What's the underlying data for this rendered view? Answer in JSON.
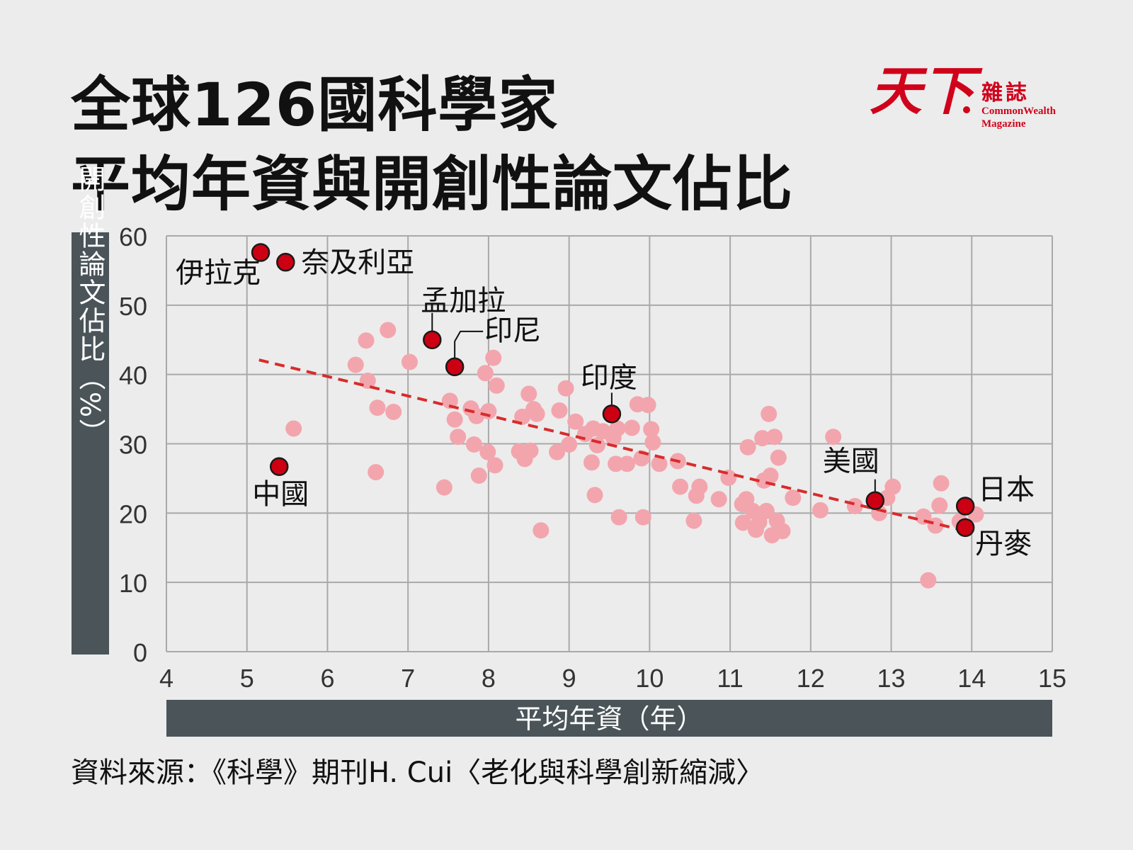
{
  "header": {
    "title_line1": "全球126國科學家",
    "title_line2": "平均年資與開創性論文佔比"
  },
  "logo": {
    "main": "天下",
    "sub": "雜誌",
    "en_line1": "CommonWealth",
    "en_line2": "Magazine",
    "icon": "commonwealth-logo"
  },
  "source_note": "資料來源：《科學》期刊H. Cui〈老化與科學創新縮減〉",
  "colors": {
    "background": "#ececec",
    "grid": "#a9a9a9",
    "axis_bar": "#4a5459",
    "highlight": "#cc0012",
    "other_points": "#f3a5ad",
    "trend": "#d92b2b"
  },
  "chart_data": {
    "type": "scatter",
    "xlabel": "平均年資（年）",
    "ylabel": "開創性論文佔比（%）",
    "xlim": [
      4,
      15
    ],
    "ylim": [
      0,
      60
    ],
    "xticks": [
      4,
      5,
      6,
      7,
      8,
      9,
      10,
      11,
      12,
      13,
      14,
      15
    ],
    "yticks": [
      0,
      10,
      20,
      30,
      40,
      50,
      60
    ],
    "grid": true,
    "trendline": {
      "x": [
        5.15,
        13.9
      ],
      "y": [
        42.1,
        17.5
      ]
    },
    "highlighted": [
      {
        "label": "伊拉克",
        "x": 5.17,
        "y": 57.6
      },
      {
        "label": "奈及利亞",
        "x": 5.48,
        "y": 56.2
      },
      {
        "label": "中國",
        "x": 5.4,
        "y": 26.7
      },
      {
        "label": "孟加拉",
        "x": 7.3,
        "y": 45.0
      },
      {
        "label": "印尼",
        "x": 7.58,
        "y": 41.1
      },
      {
        "label": "印度",
        "x": 9.53,
        "y": 34.3
      },
      {
        "label": "美國",
        "x": 12.8,
        "y": 21.8
      },
      {
        "label": "日本",
        "x": 13.92,
        "y": 21.0
      },
      {
        "label": "丹麥",
        "x": 13.92,
        "y": 17.9
      }
    ],
    "others": [
      [
        5.58,
        32.2
      ],
      [
        6.35,
        41.4
      ],
      [
        6.48,
        44.9
      ],
      [
        6.5,
        39.1
      ],
      [
        6.62,
        35.2
      ],
      [
        6.6,
        25.9
      ],
      [
        6.75,
        46.4
      ],
      [
        6.82,
        34.6
      ],
      [
        7.02,
        41.8
      ],
      [
        7.45,
        23.7
      ],
      [
        7.52,
        36.2
      ],
      [
        7.58,
        33.5
      ],
      [
        7.62,
        31.0
      ],
      [
        7.78,
        35.1
      ],
      [
        7.82,
        29.9
      ],
      [
        7.85,
        34.0
      ],
      [
        7.88,
        25.4
      ],
      [
        7.96,
        40.2
      ],
      [
        7.99,
        28.8
      ],
      [
        8.0,
        34.7
      ],
      [
        8.06,
        42.4
      ],
      [
        8.08,
        26.9
      ],
      [
        8.1,
        38.4
      ],
      [
        8.38,
        28.9
      ],
      [
        8.42,
        33.9
      ],
      [
        8.45,
        27.8
      ],
      [
        8.5,
        37.2
      ],
      [
        8.52,
        29.0
      ],
      [
        8.56,
        35.0
      ],
      [
        8.6,
        34.3
      ],
      [
        8.65,
        17.5
      ],
      [
        8.85,
        28.8
      ],
      [
        8.88,
        34.8
      ],
      [
        8.96,
        38.0
      ],
      [
        9.0,
        29.9
      ],
      [
        9.08,
        33.2
      ],
      [
        9.2,
        31.4
      ],
      [
        9.28,
        27.3
      ],
      [
        9.3,
        32.2
      ],
      [
        9.32,
        22.6
      ],
      [
        9.35,
        29.8
      ],
      [
        9.42,
        31.8
      ],
      [
        9.55,
        30.9
      ],
      [
        9.58,
        27.1
      ],
      [
        9.6,
        32.2
      ],
      [
        9.62,
        19.4
      ],
      [
        9.72,
        27.1
      ],
      [
        9.78,
        32.3
      ],
      [
        9.85,
        35.7
      ],
      [
        9.9,
        27.9
      ],
      [
        9.92,
        19.4
      ],
      [
        9.98,
        35.6
      ],
      [
        10.02,
        32.1
      ],
      [
        10.04,
        30.2
      ],
      [
        10.12,
        27.1
      ],
      [
        10.35,
        27.5
      ],
      [
        10.38,
        23.8
      ],
      [
        10.55,
        18.9
      ],
      [
        10.58,
        22.5
      ],
      [
        10.62,
        23.8
      ],
      [
        10.86,
        22.0
      ],
      [
        10.98,
        25.1
      ],
      [
        11.15,
        21.3
      ],
      [
        11.16,
        18.6
      ],
      [
        11.2,
        22.0
      ],
      [
        11.22,
        29.5
      ],
      [
        11.28,
        20.3
      ],
      [
        11.32,
        17.6
      ],
      [
        11.36,
        18.7
      ],
      [
        11.4,
        30.8
      ],
      [
        11.42,
        24.7
      ],
      [
        11.45,
        20.3
      ],
      [
        11.48,
        34.3
      ],
      [
        11.5,
        25.4
      ],
      [
        11.52,
        16.8
      ],
      [
        11.55,
        31.0
      ],
      [
        11.58,
        18.9
      ],
      [
        11.6,
        28.0
      ],
      [
        11.65,
        17.4
      ],
      [
        11.78,
        22.2
      ],
      [
        12.12,
        20.4
      ],
      [
        12.28,
        31.0
      ],
      [
        12.55,
        21.0
      ],
      [
        12.85,
        20.0
      ],
      [
        12.95,
        22.2
      ],
      [
        13.02,
        23.8
      ],
      [
        13.4,
        19.5
      ],
      [
        13.46,
        10.3
      ],
      [
        13.55,
        18.2
      ],
      [
        13.6,
        21.1
      ],
      [
        13.62,
        24.3
      ],
      [
        13.85,
        18.8
      ],
      [
        14.05,
        19.8
      ]
    ]
  }
}
